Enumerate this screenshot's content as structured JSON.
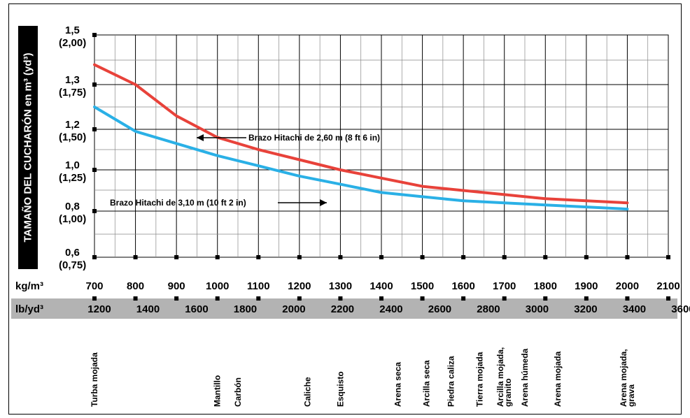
{
  "chart_data": {
    "type": "line",
    "ylabel": "TAMAÑO DEL CUCHARÓN en m³ (yd³)",
    "yticks": [
      {
        "m3": "1,5",
        "yd3": "(2,00)",
        "value": 1.5
      },
      {
        "m3": "1,3",
        "yd3": "(1,75)",
        "value": 1.3
      },
      {
        "m3": "1,2",
        "yd3": "(1,50)",
        "value": 1.2
      },
      {
        "m3": "1,0",
        "yd3": "(1,25)",
        "value": 1.0
      },
      {
        "m3": "0,8",
        "yd3": "(1,00)",
        "value": 0.8
      },
      {
        "m3": "0,6",
        "yd3": "(0,75)",
        "value": 0.6
      }
    ],
    "x_unit_primary": "kg/m³",
    "x_ticks_primary": [
      "700",
      "800",
      "900",
      "1000",
      "1100",
      "1200",
      "1300",
      "1400",
      "1500",
      "1600",
      "1700",
      "1800",
      "1900",
      "2000",
      "2100"
    ],
    "x_unit_secondary": "lb/yd³",
    "x_ticks_secondary": [
      "1200",
      "1400",
      "1600",
      "1800",
      "2000",
      "2200",
      "2400",
      "2600",
      "2800",
      "3000",
      "3200",
      "3400",
      "3600"
    ],
    "xlim": [
      700,
      2100
    ],
    "series": [
      {
        "name": "Brazo Hitachi de 2,60 m (8 ft 6 in)",
        "color": "#e8423a",
        "x": [
          700,
          800,
          900,
          1000,
          1100,
          1200,
          1300,
          1400,
          1500,
          1600,
          1700,
          1800,
          1900,
          2000
        ],
        "y": [
          1.38,
          1.3,
          1.23,
          1.16,
          1.1,
          1.05,
          1.0,
          0.96,
          0.92,
          0.9,
          0.88,
          0.86,
          0.85,
          0.84
        ]
      },
      {
        "name": "Brazo Hitachi de 3,10 m (10 ft 2 in)",
        "color": "#2ab0e6",
        "x": [
          700,
          800,
          900,
          1000,
          1100,
          1200,
          1300,
          1400,
          1500,
          1600,
          1700,
          1800,
          1900,
          2000
        ],
        "y": [
          1.25,
          1.19,
          1.13,
          1.07,
          1.02,
          0.97,
          0.93,
          0.89,
          0.87,
          0.85,
          0.84,
          0.83,
          0.82,
          0.81
        ]
      }
    ],
    "materials": [
      {
        "label": "Turba mojada",
        "x": 700
      },
      {
        "label": "Mantillo",
        "x": 1000
      },
      {
        "label": "Carbón",
        "x": 1050
      },
      {
        "label": "Caliche",
        "x": 1220
      },
      {
        "label": "Esquisto",
        "x": 1300
      },
      {
        "label": "Arena seca",
        "x": 1440
      },
      {
        "label": "Arcilla seca",
        "x": 1510
      },
      {
        "label": "Piedra caliza",
        "x": 1570
      },
      {
        "label": "Tierra mojada",
        "x": 1640
      },
      {
        "label": "Arcilla mojada,\ngranito",
        "x": 1700
      },
      {
        "label": "Arena húmeda",
        "x": 1750
      },
      {
        "label": "Arena mojada",
        "x": 1830
      },
      {
        "label": "Arena mojada,\ngrava",
        "x": 2000
      }
    ]
  }
}
